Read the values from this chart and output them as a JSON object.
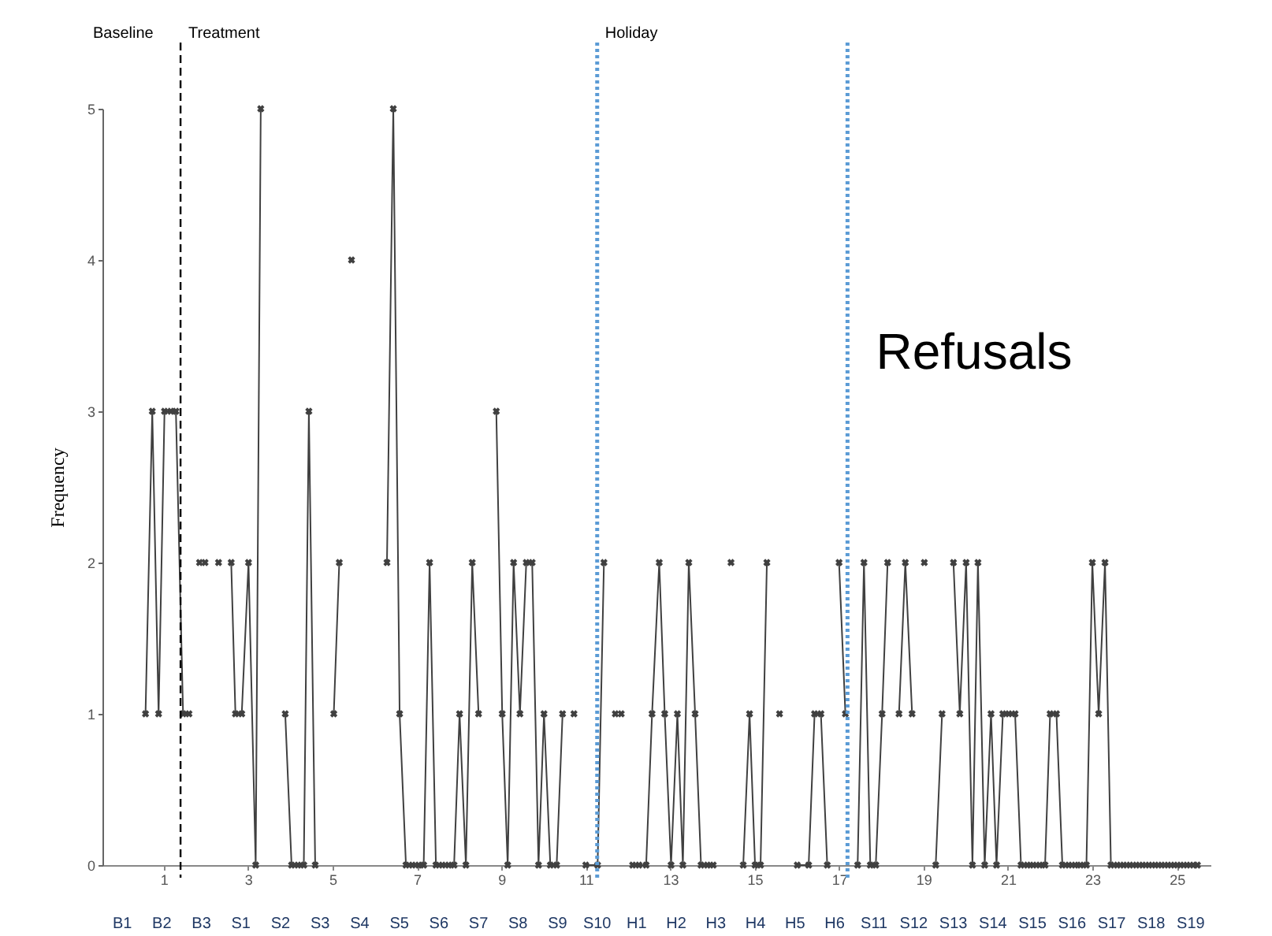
{
  "chart_data": {
    "type": "line",
    "title": "Refusals",
    "ylabel": "Frequency",
    "annotations": [
      "Baseline",
      "B1",
      "B2",
      "B3",
      "S1",
      "S2",
      "S3",
      "S4",
      "S5",
      "S6",
      "S7",
      "S8",
      "S9",
      "S10",
      "H1",
      "H2",
      "H3",
      "H4",
      "H5",
      "H6",
      "S11",
      "S12",
      "S13",
      "S14",
      "S15",
      "S16",
      "S17",
      "S18",
      "S19"
    ],
    "x": [
      0.57,
      0.73,
      0.88,
      1.02,
      1.17,
      1.29,
      1.46,
      1.6,
      1.72,
      1.85,
      1.91,
      1.98,
      2.14,
      2.3,
      2.45,
      2.6,
      2.7,
      2.85,
      3.01,
      3.18,
      3.3,
      3.6,
      3.88,
      4.03,
      4.18,
      4.32,
      4.44,
      4.59,
      4.8,
      5.03,
      5.16,
      5.3,
      5.45,
      5.9,
      6.29,
      6.44,
      6.59,
      6.74,
      6.89,
      7.04,
      7.16,
      7.3,
      7.45,
      7.6,
      7.75,
      7.88,
      8.01,
      8.16,
      8.31,
      8.46,
      8.7,
      8.88,
      9.02,
      9.15,
      9.29,
      9.44,
      9.59,
      9.73,
      9.88,
      10.01,
      10.16,
      10.31,
      10.45,
      10.6,
      10.72,
      10.85,
      11.0,
      11.28,
      11.43,
      11.55,
      11.7,
      11.77,
      11.84,
      11.97,
      12.11,
      12.26,
      12.43,
      12.57,
      12.74,
      12.87,
      13.02,
      13.17,
      13.3,
      13.44,
      13.59,
      13.73,
      13.88,
      14.02,
      14.2,
      14.44,
      14.6,
      14.73,
      14.88,
      15.01,
      15.14,
      15.29,
      15.45,
      15.59,
      15.8,
      16.01,
      16.28,
      16.42,
      16.57,
      16.72,
      16.86,
      17.0,
      17.15,
      17.3,
      17.44,
      17.59,
      17.74,
      17.87,
      18.02,
      18.15,
      18.3,
      18.42,
      18.57,
      18.73,
      18.87,
      19.02,
      19.15,
      19.29,
      19.44,
      19.57,
      19.71,
      19.86,
      20.01,
      20.16,
      20.29,
      20.45,
      20.6,
      20.73,
      20.88,
      21.02,
      21.17,
      21.31,
      21.46,
      21.6,
      21.75,
      21.88,
      22.0,
      22.15,
      22.29,
      22.44,
      22.59,
      22.72,
      22.86,
      23.0,
      23.15,
      23.3,
      23.44,
      23.59,
      23.74,
      23.89,
      24.04,
      24.19,
      24.34,
      24.49,
      24.64,
      24.79,
      24.94,
      25.09,
      25.24,
      25.39,
      25.49
    ],
    "series": [
      {
        "color": "#404040",
        "values": [
          1,
          3,
          1,
          3,
          3,
          3,
          1,
          1,
          null,
          2,
          null,
          2,
          null,
          2,
          null,
          2,
          1,
          1,
          2,
          0,
          5,
          null,
          1,
          0,
          0,
          0,
          3,
          0,
          null,
          1,
          2,
          null,
          4,
          null,
          2,
          5,
          1,
          0,
          0,
          0,
          0,
          2,
          0,
          0,
          0,
          0,
          1,
          0,
          2,
          1,
          null,
          3,
          1,
          0,
          2,
          1,
          2,
          2,
          0,
          1,
          0,
          0,
          1,
          null,
          1,
          null,
          0,
          0,
          2,
          null,
          1,
          null,
          1,
          null,
          0,
          0,
          0,
          1,
          2,
          1,
          0,
          1,
          0,
          2,
          1,
          0,
          0,
          0,
          null,
          2,
          null,
          0,
          1,
          0,
          0,
          2,
          null,
          1,
          null,
          0,
          0,
          1,
          1,
          0,
          null,
          2,
          1,
          null,
          0,
          2,
          0,
          0,
          1,
          2,
          null,
          1,
          2,
          1,
          null,
          2,
          null,
          0,
          1,
          null,
          2,
          1,
          2,
          0,
          2,
          0,
          1,
          0,
          1,
          1,
          1,
          0,
          0,
          0,
          0,
          0,
          1,
          1,
          0,
          0,
          0,
          0,
          0,
          2,
          1,
          2,
          0,
          0,
          0,
          0,
          0,
          0,
          0,
          0,
          0,
          0,
          0,
          0,
          0,
          0,
          0
        ]
      }
    ],
    "xlim": [
      -0.45,
      25.8
    ],
    "xticks": [
      1,
      3,
      5,
      7,
      9,
      11,
      13,
      15,
      17,
      19,
      21,
      23,
      25
    ],
    "ylim": [
      0,
      5
    ],
    "yticks": [
      0,
      1,
      2,
      3,
      4,
      5
    ],
    "ref_lines": [
      {
        "axis": "x",
        "value": 1.4,
        "label": "Treatment",
        "color": "#000000",
        "line_style": "dashed"
      },
      {
        "axis": "x",
        "value": 11.27,
        "label": "Holiday",
        "color": "#5b9bd5",
        "line_style": "dotted"
      },
      {
        "axis": "x",
        "value": 17.2,
        "color": "#5b9bd5",
        "line_style": "dotted"
      }
    ],
    "marker": "cross",
    "line_style": "solid",
    "grid": false
  }
}
